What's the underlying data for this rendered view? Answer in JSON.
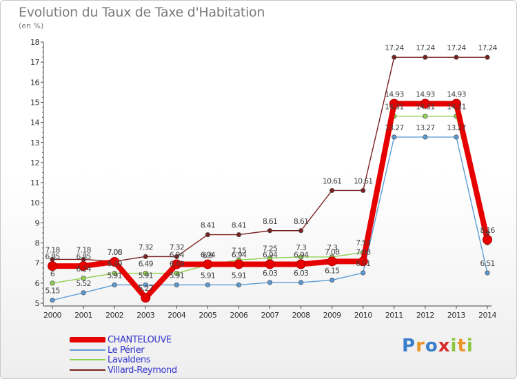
{
  "title": "Evolution du Taux de Taxe d'Habitation",
  "subtitle": "(en %)",
  "logo": {
    "letters": [
      "P",
      "r",
      "o",
      "x",
      "i",
      "t",
      "i"
    ],
    "colors": [
      "#3a7ecb",
      "#e8962a",
      "#3a7ecb",
      "#d62b2b",
      "#8cc63f",
      "#e8962a",
      "#8cc63f"
    ]
  },
  "chart_data": {
    "type": "line",
    "x": [
      "2000",
      "2001",
      "2002",
      "2003",
      "2004",
      "2005",
      "2006",
      "2007",
      "2008",
      "2009",
      "2010",
      "2011",
      "2012",
      "2013",
      "2014"
    ],
    "ylim": [
      5,
      18
    ],
    "yticks": [
      "5",
      "6",
      "7",
      "8",
      "9",
      "10",
      "11",
      "12",
      "13",
      "14",
      "15",
      "16",
      "17",
      "18"
    ],
    "grid": false,
    "legend_position": "bottom-left",
    "series": [
      {
        "name": "Villard-Reymond",
        "color": "#7a1f1f",
        "values": [
          7.18,
          7.18,
          7.08,
          7.32,
          7.32,
          8.41,
          8.41,
          8.61,
          8.61,
          10.61,
          10.61,
          17.24,
          17.24,
          17.24,
          17.24
        ],
        "labels": [
          "7.18",
          "7.18",
          "7.08",
          "7.32",
          "7.32",
          "8.41",
          "8.41",
          "8.61",
          "8.61",
          "10.61",
          "10.61",
          "17.24",
          "17.24",
          "17.24",
          "17.24"
        ]
      },
      {
        "name": "Lavaldens",
        "color": "#8fd14f",
        "values": [
          6,
          6.24,
          6.49,
          6.49,
          6.49,
          6.9,
          7.15,
          7.25,
          7.3,
          7.3,
          7.53,
          14.31,
          14.31,
          14.31,
          8
        ],
        "labels": [
          "6",
          "6.24",
          "6.49",
          "6.49",
          "6.49",
          "6.9",
          "7.15",
          "7.25",
          "7.3",
          "7.3",
          "7.53",
          "14.31",
          "14.31",
          "14.31",
          "8"
        ]
      },
      {
        "name": "Le Périer",
        "color": "#5b9bd5",
        "values": [
          5.15,
          5.52,
          5.91,
          5.91,
          5.91,
          5.91,
          5.91,
          6.03,
          6.03,
          6.15,
          6.51,
          13.27,
          13.27,
          13.27,
          6.51
        ],
        "labels": [
          "5.15",
          "5.52",
          "5.91",
          "5.91",
          "5.91",
          "5.91",
          "5.91",
          "6.03",
          "6.03",
          "6.15",
          "6.51",
          "13.27",
          "13.27",
          "13.27",
          "6.51"
        ]
      },
      {
        "name": "CHANTELOUVE",
        "color": "#e60000",
        "values": [
          6.85,
          6.85,
          7.06,
          5.27,
          6.94,
          6.94,
          6.94,
          6.94,
          6.94,
          7.08,
          7.08,
          14.93,
          14.93,
          14.93,
          8.16
        ],
        "labels": [
          "6.85",
          "6.85",
          "7.06",
          "5.27",
          "6.94",
          "6.94",
          "6.94",
          "6.94",
          "6.94",
          "7.08",
          "7.08",
          "14.93",
          "14.93",
          "14.93",
          "8.16"
        ]
      }
    ]
  },
  "legend": [
    {
      "label": "CHANTELOUVE",
      "color": "#e60000"
    },
    {
      "label": "Le Périer",
      "color": "#5b9bd5"
    },
    {
      "label": "Lavaldens",
      "color": "#8fd14f"
    },
    {
      "label": "Villard-Reymond",
      "color": "#7a1f1f"
    }
  ]
}
